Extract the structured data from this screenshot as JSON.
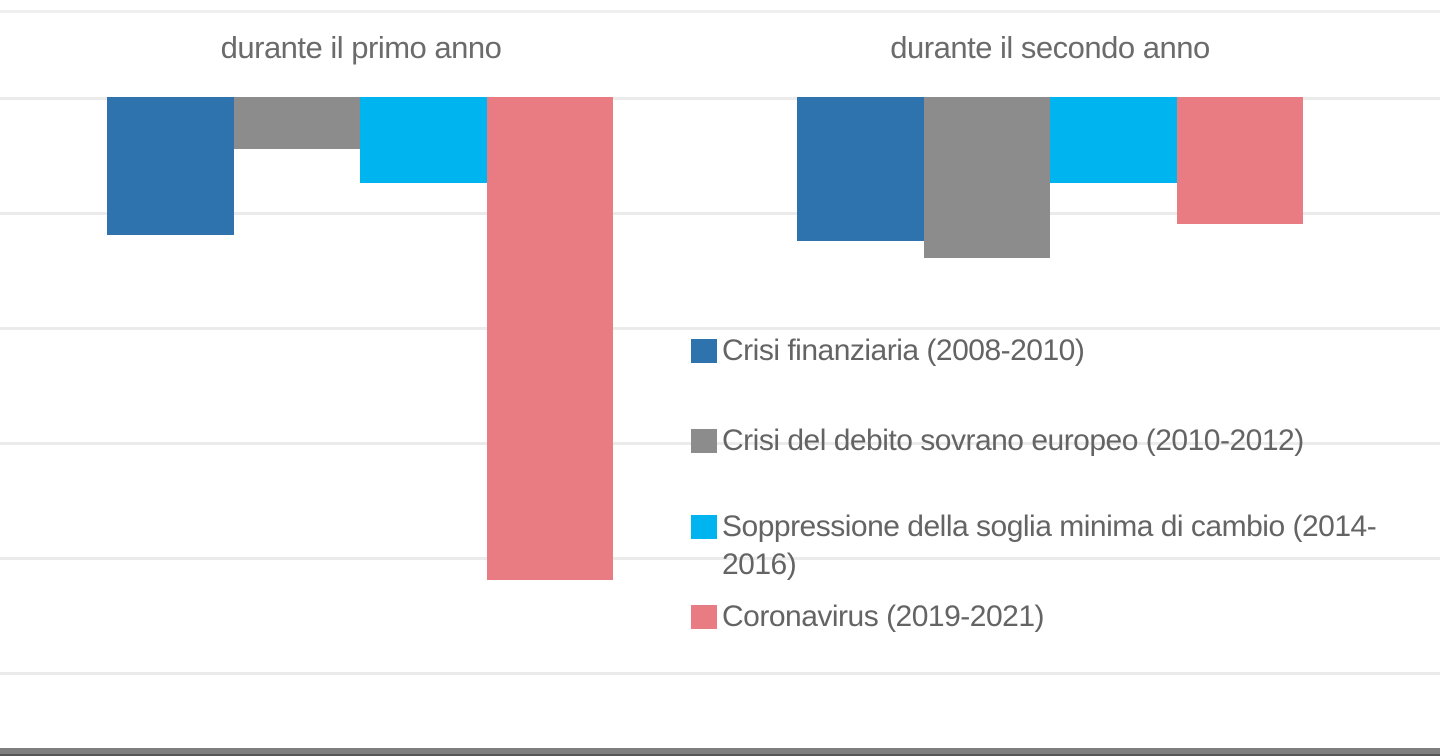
{
  "chart_data": {
    "type": "bar",
    "title": "",
    "xlabel": "",
    "ylabel": "",
    "categories": [
      "durante il primo anno",
      "durante il secondo anno"
    ],
    "series": [
      {
        "name": "Crisi finanziaria (2008-2010)",
        "color": "#2E73AD",
        "values": [
          -1.2,
          -1.25
        ]
      },
      {
        "name": "Crisi del debito sovrano europeo (2010-2012)",
        "color": "#8C8C8C",
        "values": [
          -0.45,
          -1.4
        ]
      },
      {
        "name": "Soppressione della soglia minima di cambio (2014-2016)",
        "color": "#00B4F0",
        "values": [
          -0.75,
          -0.75
        ]
      },
      {
        "name": "Coronavirus (2019-2021)",
        "color": "#E87C82",
        "values": [
          -4.2,
          -1.1
        ]
      }
    ],
    "ylim": [
      -5.7,
      0.75
    ],
    "grid": true,
    "legend_position": "right-middle",
    "note": "Axis tick labels are cropped out of the screenshot; values are estimated in gridline units (1 unit = one gridline interval). Bars extend downward from the zero baseline at the top of the plot."
  },
  "colors": {
    "gridline": "#ebebeb",
    "top_line": "#efefef",
    "bottom_edge_bar": "#7f7f7f",
    "title_text": "#6b6b6b",
    "legend_text": "#646464",
    "background": "#ffffff"
  }
}
